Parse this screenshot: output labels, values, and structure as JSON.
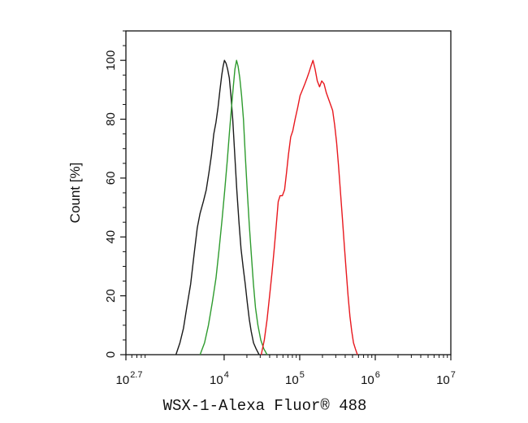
{
  "chart_data": {
    "type": "line",
    "title": "",
    "xlabel": "WSX-1-Alexa Fluor® 488",
    "ylabel": "Count [%]",
    "x_scale": "log",
    "xlim": [
      501,
      10000000
    ],
    "ylim": [
      0,
      110
    ],
    "x_ticks": [
      {
        "value": 501,
        "base": "10",
        "exp": "2.7"
      },
      {
        "value": 10000,
        "base": "10",
        "exp": "4"
      },
      {
        "value": 100000,
        "base": "10",
        "exp": "5"
      },
      {
        "value": 1000000,
        "base": "10",
        "exp": "6"
      },
      {
        "value": 10000000,
        "base": "10",
        "exp": "7"
      }
    ],
    "y_ticks": [
      0,
      20,
      40,
      60,
      80,
      100
    ],
    "legend": "none",
    "grid": false,
    "series": [
      {
        "color": "#1a1a1a",
        "points": [
          [
            2300,
            0
          ],
          [
            2600,
            4
          ],
          [
            2900,
            9
          ],
          [
            3200,
            16
          ],
          [
            3600,
            24
          ],
          [
            4000,
            34
          ],
          [
            4400,
            43
          ],
          [
            4800,
            48
          ],
          [
            5300,
            52
          ],
          [
            5800,
            56
          ],
          [
            6300,
            62
          ],
          [
            6800,
            68
          ],
          [
            7300,
            75
          ],
          [
            7800,
            79
          ],
          [
            8300,
            84
          ],
          [
            8800,
            90
          ],
          [
            9300,
            95
          ],
          [
            9700,
            98
          ],
          [
            10100,
            100
          ],
          [
            10600,
            99
          ],
          [
            11100,
            97
          ],
          [
            11700,
            94
          ],
          [
            12300,
            88
          ],
          [
            13000,
            80
          ],
          [
            13800,
            68
          ],
          [
            14700,
            56
          ],
          [
            15700,
            45
          ],
          [
            16700,
            36
          ],
          [
            17800,
            30
          ],
          [
            19000,
            24
          ],
          [
            20200,
            18
          ],
          [
            21500,
            12
          ],
          [
            22800,
            8
          ],
          [
            24500,
            4
          ],
          [
            26500,
            2
          ],
          [
            29000,
            0
          ]
        ]
      },
      {
        "color": "#2e9b2e",
        "points": [
          [
            4800,
            0
          ],
          [
            5500,
            4
          ],
          [
            6200,
            10
          ],
          [
            7000,
            18
          ],
          [
            7800,
            26
          ],
          [
            8600,
            36
          ],
          [
            9400,
            46
          ],
          [
            10200,
            56
          ],
          [
            11000,
            66
          ],
          [
            11800,
            76
          ],
          [
            12500,
            84
          ],
          [
            13200,
            91
          ],
          [
            13900,
            97
          ],
          [
            14600,
            100
          ],
          [
            15300,
            98
          ],
          [
            16100,
            94
          ],
          [
            17000,
            88
          ],
          [
            18000,
            80
          ],
          [
            19000,
            68
          ],
          [
            20200,
            56
          ],
          [
            21500,
            44
          ],
          [
            22900,
            34
          ],
          [
            24400,
            24
          ],
          [
            26000,
            16
          ],
          [
            28000,
            10
          ],
          [
            30500,
            5
          ],
          [
            33500,
            2
          ],
          [
            37000,
            0
          ]
        ]
      },
      {
        "color": "#e8181e",
        "points": [
          [
            31000,
            0
          ],
          [
            34000,
            5
          ],
          [
            37000,
            12
          ],
          [
            40000,
            20
          ],
          [
            43000,
            28
          ],
          [
            46000,
            36
          ],
          [
            49000,
            44
          ],
          [
            52000,
            52
          ],
          [
            55000,
            54
          ],
          [
            59000,
            54
          ],
          [
            63000,
            56
          ],
          [
            67000,
            62
          ],
          [
            71000,
            68
          ],
          [
            76000,
            74
          ],
          [
            81000,
            76
          ],
          [
            87000,
            80
          ],
          [
            94000,
            84
          ],
          [
            101000,
            88
          ],
          [
            109000,
            90
          ],
          [
            117000,
            92
          ],
          [
            125000,
            94
          ],
          [
            133000,
            96
          ],
          [
            141000,
            98
          ],
          [
            150000,
            100
          ],
          [
            160000,
            97
          ],
          [
            171000,
            93
          ],
          [
            183000,
            91
          ],
          [
            196000,
            93
          ],
          [
            210000,
            92
          ],
          [
            225000,
            89
          ],
          [
            240000,
            87
          ],
          [
            256000,
            85
          ],
          [
            273000,
            83
          ],
          [
            290000,
            78
          ],
          [
            308000,
            72
          ],
          [
            327000,
            64
          ],
          [
            347000,
            55
          ],
          [
            368000,
            46
          ],
          [
            390000,
            37
          ],
          [
            413000,
            28
          ],
          [
            437000,
            20
          ],
          [
            462000,
            13
          ],
          [
            488000,
            8
          ],
          [
            515000,
            4
          ],
          [
            545000,
            2
          ],
          [
            580000,
            0
          ]
        ]
      }
    ]
  }
}
